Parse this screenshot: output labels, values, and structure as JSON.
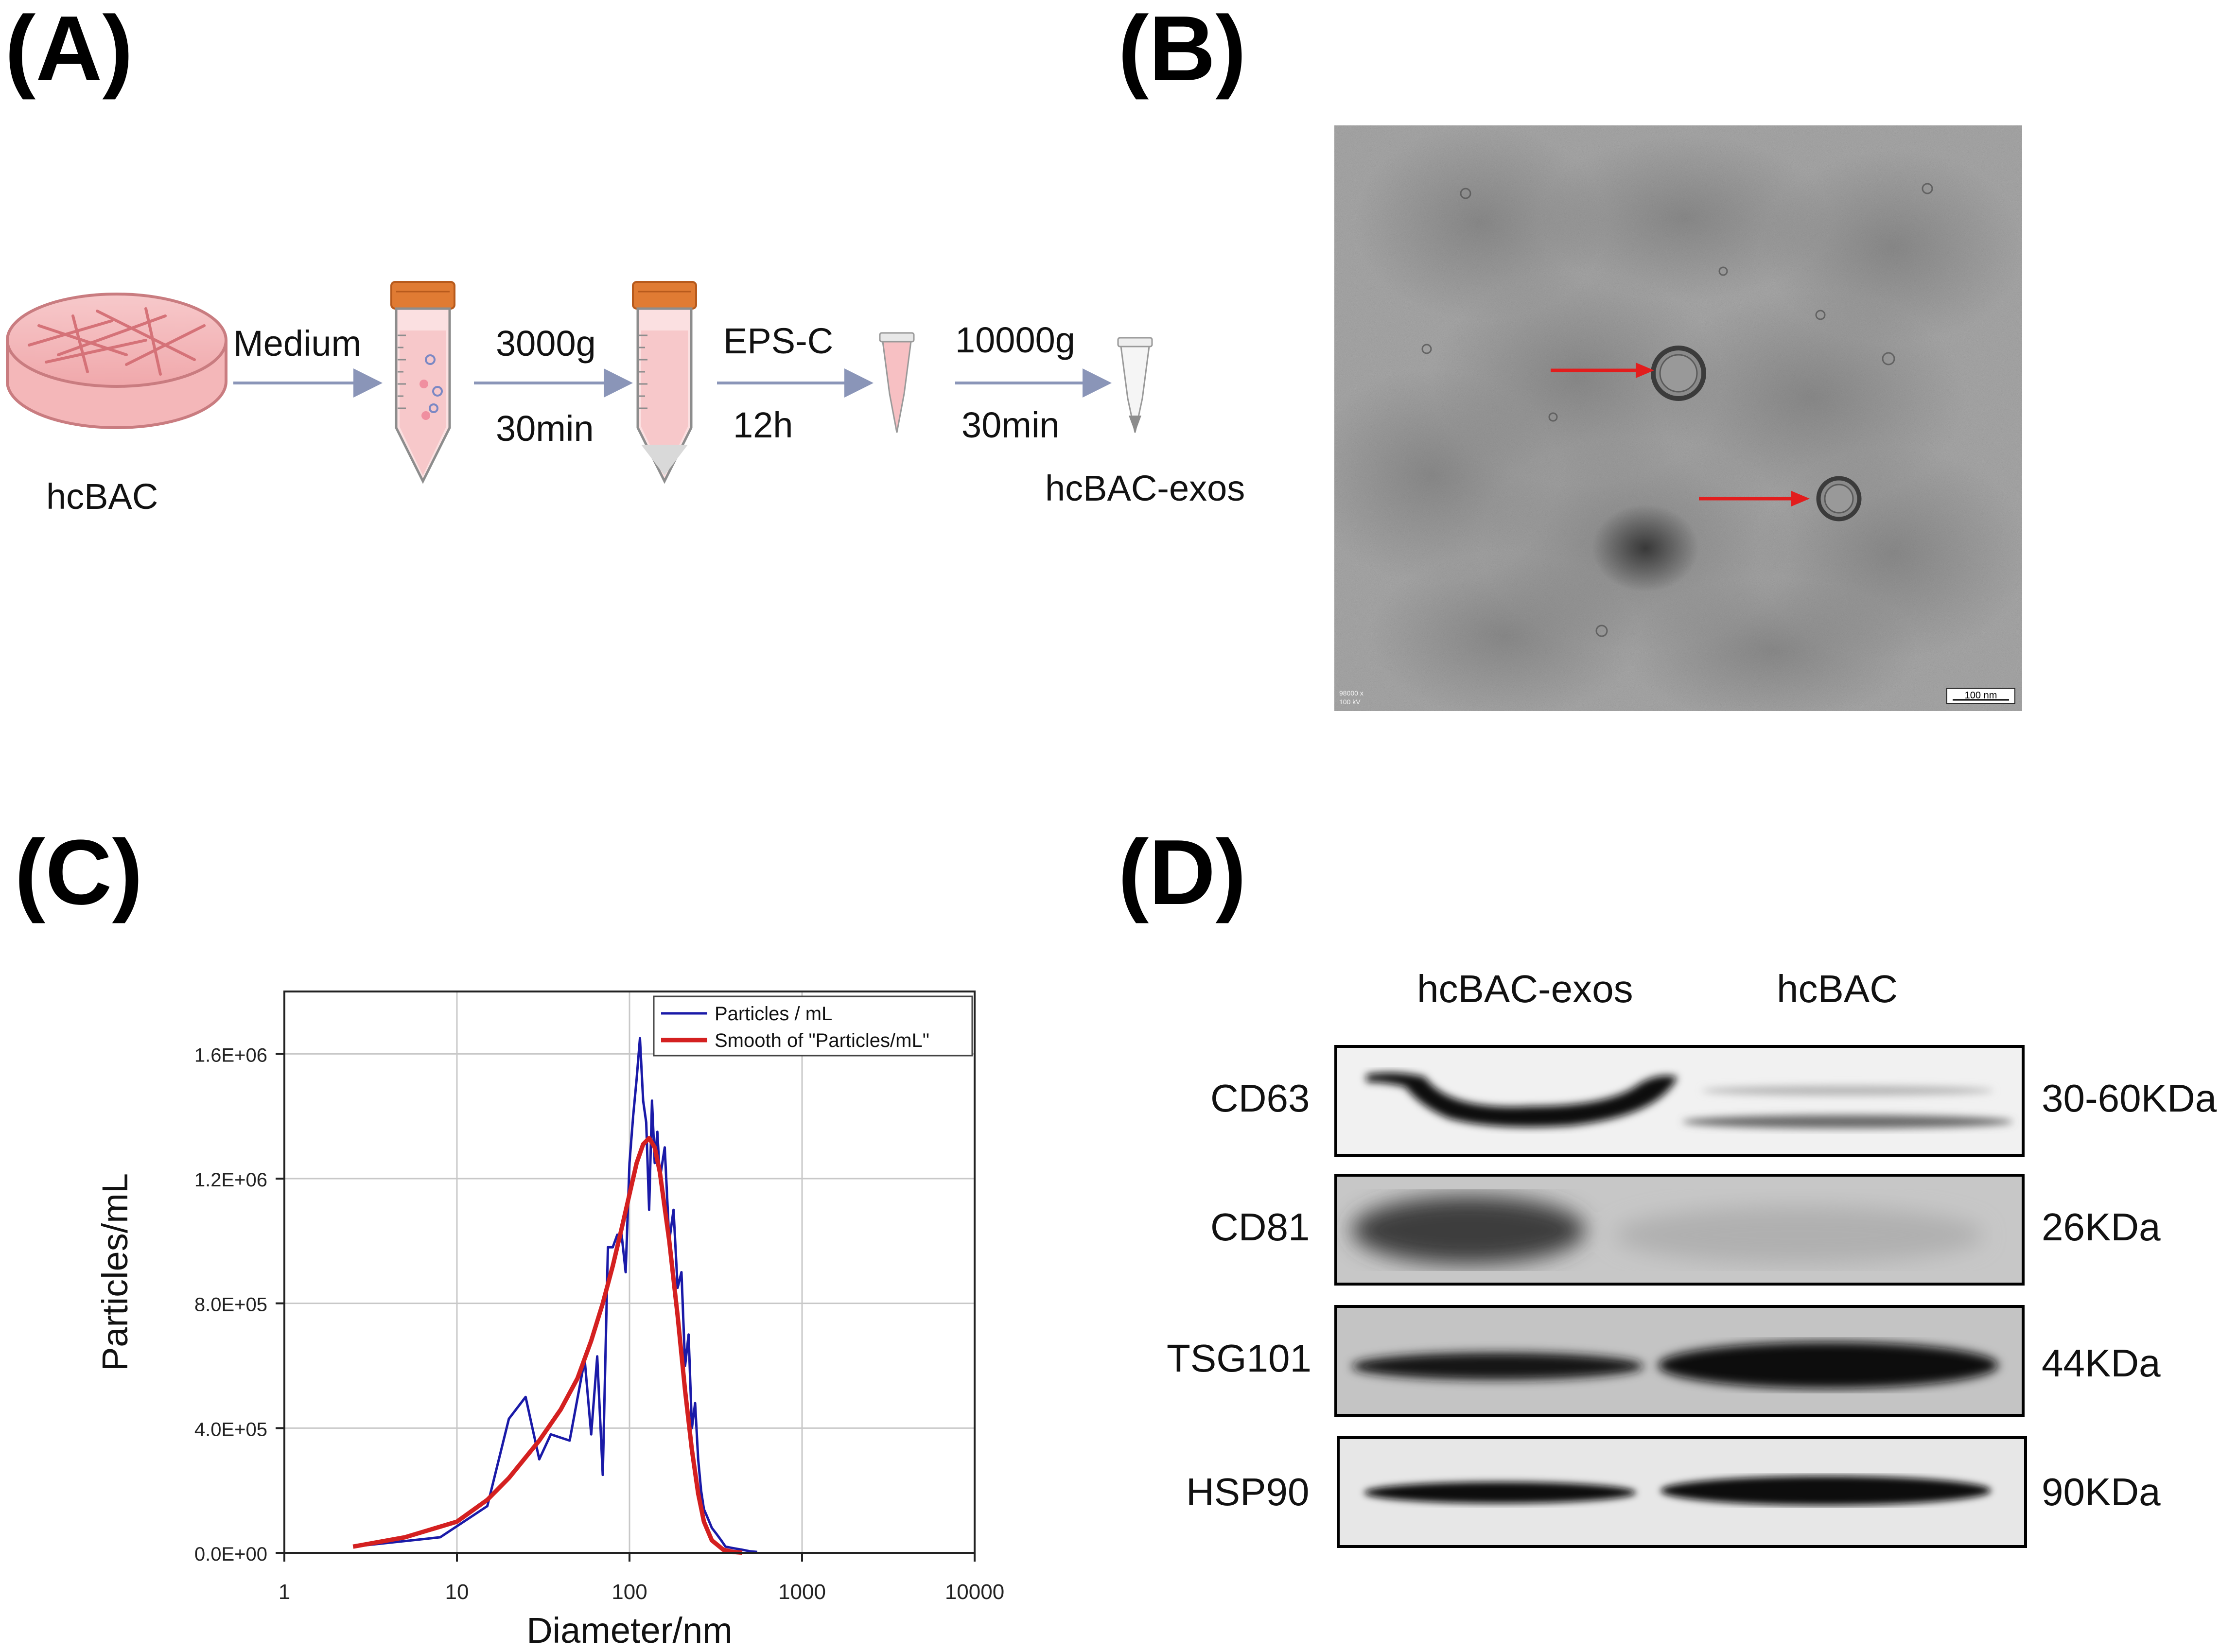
{
  "panels": {
    "a": "(A)",
    "b": "(B)",
    "c": "(C)",
    "d": "(D)"
  },
  "workflow": {
    "source": "hcBAC",
    "steps": [
      {
        "top": "Medium",
        "bottom": ""
      },
      {
        "top": "3000g",
        "bottom": "30min"
      },
      {
        "top": "EPS-C",
        "bottom": "12h"
      },
      {
        "top": "10000g",
        "bottom": "30min"
      }
    ],
    "product": "hcBAC-exos"
  },
  "tem": {
    "scale_bar": "100 nm",
    "info_line1": "98000 x",
    "info_line2": "100 kV"
  },
  "chart_data": {
    "type": "line",
    "title": "",
    "xlabel": "Diameter/nm",
    "ylabel": "Particles/mL",
    "xscale": "log",
    "xlim": [
      1,
      10000
    ],
    "ylim": [
      0,
      1800000
    ],
    "x_ticks": [
      "1",
      "10",
      "100",
      "1000",
      "10000"
    ],
    "y_ticks": [
      "0.0E+00",
      "4.0E+05",
      "8.0E+05",
      "1.2E+06",
      "1.6E+06"
    ],
    "grid": true,
    "legend_position": "top-right",
    "series": [
      {
        "name": "Particles / mL",
        "color": "#1a1aa8",
        "x": [
          2.5,
          8,
          15,
          20,
          25,
          30,
          35,
          45,
          55,
          60,
          65,
          70,
          75,
          80,
          85,
          90,
          95,
          100,
          105,
          110,
          115,
          120,
          125,
          130,
          135,
          140,
          145,
          150,
          160,
          170,
          180,
          190,
          200,
          210,
          220,
          230,
          240,
          250,
          260,
          270,
          280,
          300,
          320,
          340,
          360,
          400,
          450,
          500,
          550
        ],
        "y": [
          20000,
          50000,
          150000,
          430000,
          500000,
          300000,
          380000,
          360000,
          620000,
          380000,
          630000,
          250000,
          980000,
          980000,
          1020000,
          1020000,
          900000,
          1250000,
          1400000,
          1520000,
          1650000,
          1450000,
          1380000,
          1100000,
          1450000,
          1250000,
          1350000,
          1200000,
          1300000,
          1000000,
          1100000,
          850000,
          900000,
          600000,
          700000,
          400000,
          480000,
          300000,
          200000,
          140000,
          120000,
          80000,
          60000,
          40000,
          20000,
          15000,
          10000,
          5000,
          3000
        ]
      },
      {
        "name": "Smooth of \"Particles/mL\"",
        "color": "#d42020",
        "x": [
          2.5,
          5,
          10,
          15,
          20,
          30,
          40,
          50,
          60,
          70,
          80,
          90,
          100,
          110,
          120,
          130,
          140,
          150,
          170,
          190,
          210,
          230,
          250,
          270,
          300,
          350,
          400,
          450
        ],
        "y": [
          20000,
          50000,
          100000,
          170000,
          240000,
          360000,
          460000,
          560000,
          680000,
          800000,
          920000,
          1040000,
          1150000,
          1250000,
          1310000,
          1330000,
          1300000,
          1220000,
          1000000,
          760000,
          520000,
          330000,
          190000,
          100000,
          40000,
          10000,
          3000,
          500
        ]
      }
    ]
  },
  "western_blot": {
    "lanes": [
      "hcBAC-exos",
      "hcBAC"
    ],
    "rows": [
      {
        "protein": "CD63",
        "size": "30-60KDa"
      },
      {
        "protein": "CD81",
        "size": "26KDa"
      },
      {
        "protein": "TSG101",
        "size": "44KDa"
      },
      {
        "protein": "HSP90",
        "size": "90KDa"
      }
    ]
  }
}
